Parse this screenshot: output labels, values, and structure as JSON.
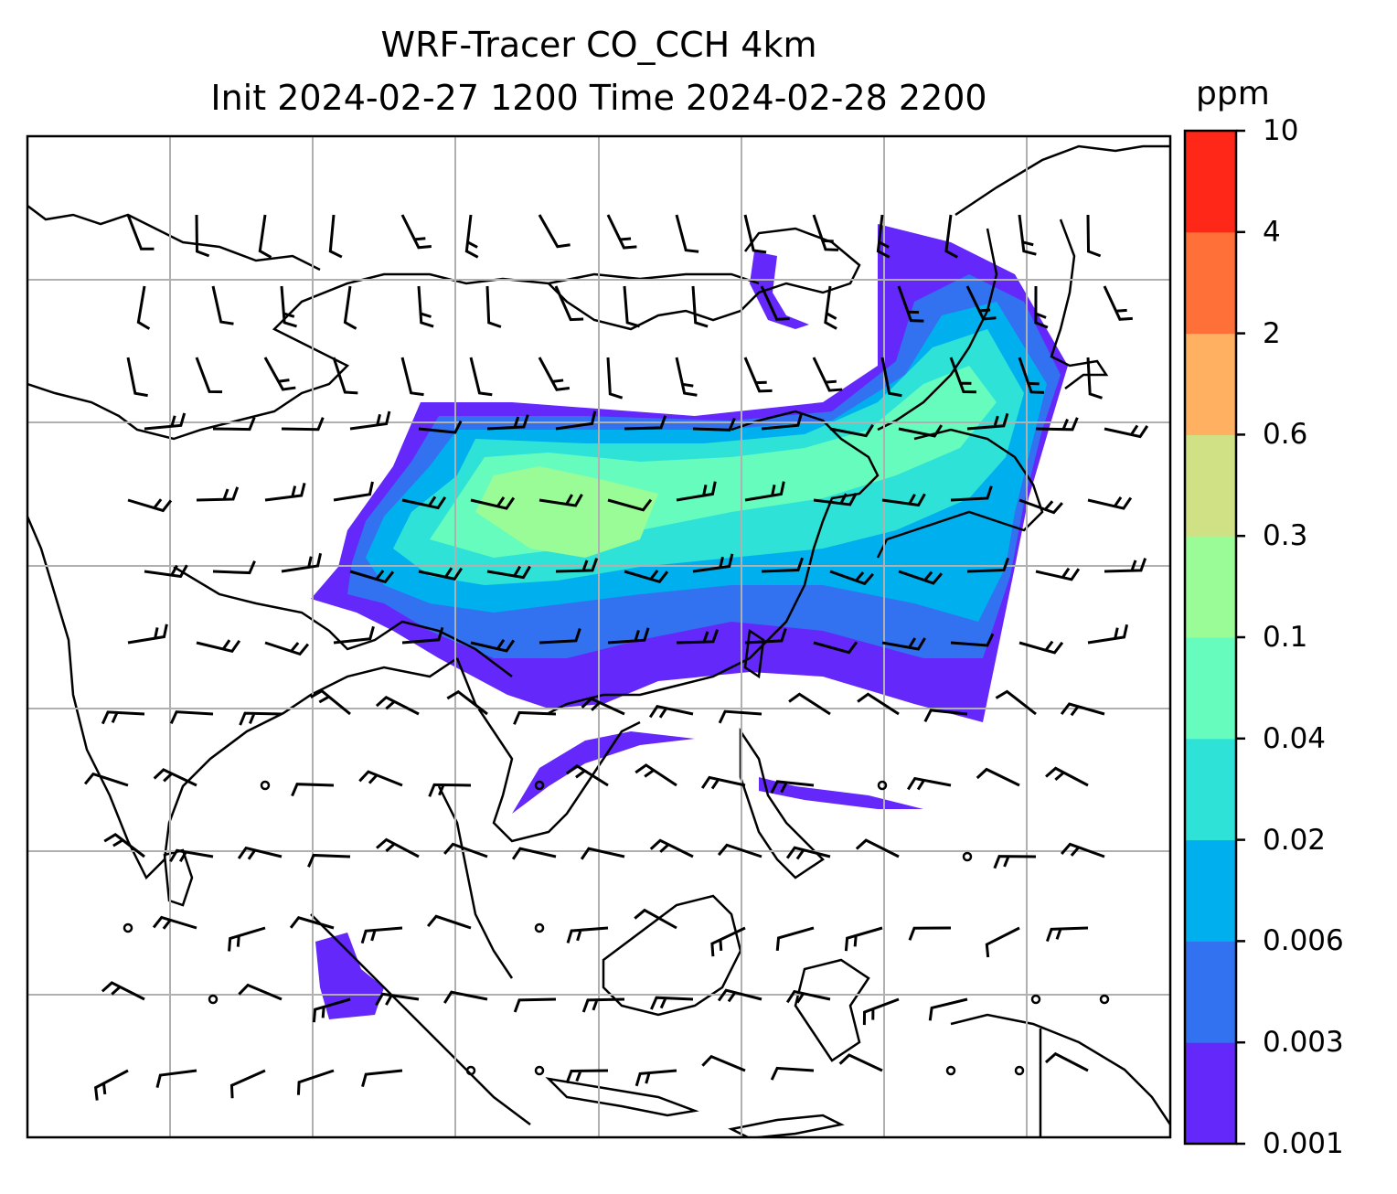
{
  "title": {
    "line1": "WRF-Tracer CO_CCH 4km",
    "line2": "Init 2024-02-27 1200 Time 2024-02-28 2200"
  },
  "colorbar": {
    "unit": "ppm",
    "labels": [
      "0.001",
      "0.003",
      "0.006",
      "0.02",
      "0.04",
      "0.1",
      "0.3",
      "0.6",
      "2",
      "4",
      "10"
    ],
    "colors": [
      "#6428fa",
      "#3272f0",
      "#00b0ee",
      "#2ee2d8",
      "#66fcbe",
      "#99fc96",
      "#d0e084",
      "#ffb060",
      "#ff7038",
      "#ff2818"
    ]
  },
  "map": {
    "gridline_color": "#b0b0b0",
    "coastline_color": "#000000"
  }
}
